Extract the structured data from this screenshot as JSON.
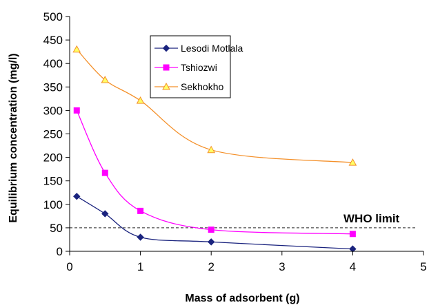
{
  "chart_data": {
    "type": "line",
    "title": "",
    "xlabel": "Mass of adsorbent (g)",
    "ylabel": "Equilibrium concentration (mg/l)",
    "xlim": [
      0,
      5
    ],
    "ylim": [
      0,
      500
    ],
    "x_ticks": [
      "0",
      "1",
      "2",
      "3",
      "4",
      "5"
    ],
    "y_ticks": [
      "0",
      "50",
      "100",
      "150",
      "200",
      "250",
      "300",
      "350",
      "400",
      "450",
      "500"
    ],
    "grid": false,
    "smooth": true,
    "legend": "top-center",
    "series": [
      {
        "name": "Lesodi Motlala",
        "color": "#1a237e",
        "marker": "diamond",
        "points": [
          [
            0.1,
            117
          ],
          [
            0.5,
            80
          ],
          [
            1,
            30
          ],
          [
            2,
            20
          ],
          [
            4,
            5
          ]
        ]
      },
      {
        "name": "Tshiozwi",
        "color": "#ff00ff",
        "marker": "square",
        "points": [
          [
            0.1,
            300
          ],
          [
            0.5,
            167
          ],
          [
            1,
            86
          ],
          [
            2,
            46
          ],
          [
            4,
            37
          ]
        ]
      },
      {
        "name": "Sekhokho",
        "color": "#f4902a",
        "marker": "triangle",
        "fill": "#ffff66",
        "points": [
          [
            0.1,
            430
          ],
          [
            0.5,
            365
          ],
          [
            1,
            321
          ],
          [
            2,
            216
          ],
          [
            4,
            189
          ]
        ]
      }
    ],
    "annotations": [
      {
        "label": "WHO limit",
        "y": 50,
        "style": "dashed"
      }
    ]
  }
}
